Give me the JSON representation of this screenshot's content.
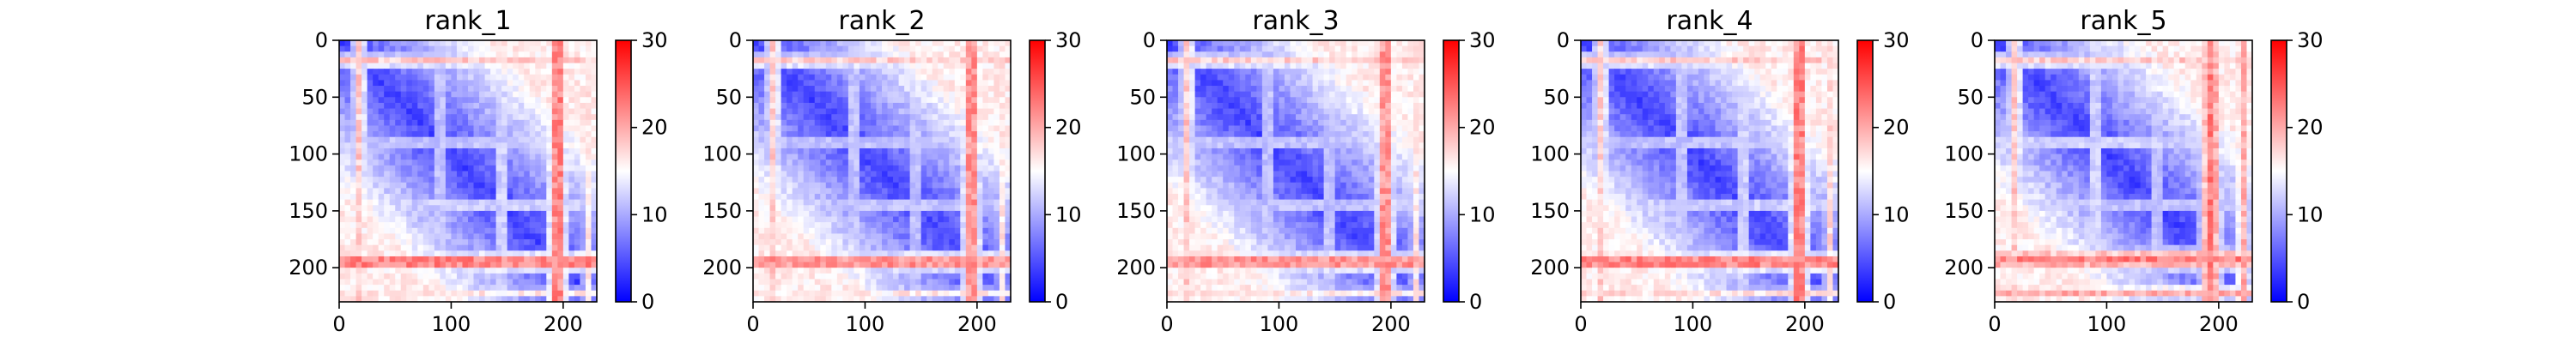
{
  "chart_data": [
    {
      "type": "heatmap",
      "title": "rank_1",
      "xlim": [
        0,
        230
      ],
      "ylim": [
        230,
        0
      ],
      "xticks": [
        0,
        100,
        200
      ],
      "yticks": [
        0,
        50,
        100,
        150,
        200
      ],
      "colorbar": {
        "min": 0,
        "max": 30,
        "ticks": [
          0,
          10,
          20,
          30
        ],
        "colormap": [
          "#0000ff",
          "#ffffff",
          "#ff0000"
        ]
      },
      "bands": [
        {
          "at": 18,
          "width": 8,
          "value": 20
        },
        {
          "at": 90,
          "width": 6,
          "value": 15
        },
        {
          "at": 145,
          "width": 6,
          "value": 16
        },
        {
          "at": 195,
          "width": 10,
          "value": 26
        },
        {
          "at": 222,
          "width": 6,
          "value": 18
        }
      ]
    },
    {
      "type": "heatmap",
      "title": "rank_2",
      "xlim": [
        0,
        230
      ],
      "ylim": [
        230,
        0
      ],
      "xticks": [
        0,
        100,
        200
      ],
      "yticks": [
        0,
        50,
        100,
        150,
        200
      ],
      "colorbar": {
        "min": 0,
        "max": 30,
        "ticks": [
          0,
          10,
          20,
          30
        ],
        "colormap": [
          "#0000ff",
          "#ffffff",
          "#ff0000"
        ]
      },
      "bands": [
        {
          "at": 18,
          "width": 8,
          "value": 20
        },
        {
          "at": 90,
          "width": 6,
          "value": 15
        },
        {
          "at": 145,
          "width": 6,
          "value": 15
        },
        {
          "at": 195,
          "width": 10,
          "value": 25
        },
        {
          "at": 222,
          "width": 6,
          "value": 18
        }
      ]
    },
    {
      "type": "heatmap",
      "title": "rank_3",
      "xlim": [
        0,
        230
      ],
      "ylim": [
        230,
        0
      ],
      "xticks": [
        0,
        100,
        200
      ],
      "yticks": [
        0,
        50,
        100,
        150,
        200
      ],
      "colorbar": {
        "min": 0,
        "max": 30,
        "ticks": [
          0,
          10,
          20,
          30
        ],
        "colormap": [
          "#0000ff",
          "#ffffff",
          "#ff0000"
        ]
      },
      "bands": [
        {
          "at": 18,
          "width": 8,
          "value": 20
        },
        {
          "at": 90,
          "width": 6,
          "value": 15
        },
        {
          "at": 145,
          "width": 6,
          "value": 15
        },
        {
          "at": 195,
          "width": 10,
          "value": 25
        },
        {
          "at": 222,
          "width": 6,
          "value": 18
        }
      ]
    },
    {
      "type": "heatmap",
      "title": "rank_4",
      "xlim": [
        0,
        230
      ],
      "ylim": [
        230,
        0
      ],
      "xticks": [
        0,
        100,
        200
      ],
      "yticks": [
        0,
        50,
        100,
        150,
        200
      ],
      "colorbar": {
        "min": 0,
        "max": 30,
        "ticks": [
          0,
          10,
          20,
          30
        ],
        "colormap": [
          "#0000ff",
          "#ffffff",
          "#ff0000"
        ]
      },
      "bands": [
        {
          "at": 18,
          "width": 8,
          "value": 20
        },
        {
          "at": 90,
          "width": 6,
          "value": 15
        },
        {
          "at": 145,
          "width": 6,
          "value": 16
        },
        {
          "at": 195,
          "width": 10,
          "value": 26
        },
        {
          "at": 222,
          "width": 6,
          "value": 19
        }
      ]
    },
    {
      "type": "heatmap",
      "title": "rank_5",
      "xlim": [
        0,
        230
      ],
      "ylim": [
        230,
        0
      ],
      "xticks": [
        0,
        100,
        200
      ],
      "yticks": [
        0,
        50,
        100,
        150,
        200
      ],
      "colorbar": {
        "min": 0,
        "max": 30,
        "ticks": [
          0,
          10,
          20,
          30
        ],
        "colormap": [
          "#0000ff",
          "#ffffff",
          "#ff0000"
        ]
      },
      "bands": [
        {
          "at": 18,
          "width": 8,
          "value": 20
        },
        {
          "at": 90,
          "width": 6,
          "value": 16
        },
        {
          "at": 145,
          "width": 6,
          "value": 15
        },
        {
          "at": 193,
          "width": 12,
          "value": 25
        },
        {
          "at": 222,
          "width": 8,
          "value": 22
        }
      ]
    }
  ]
}
